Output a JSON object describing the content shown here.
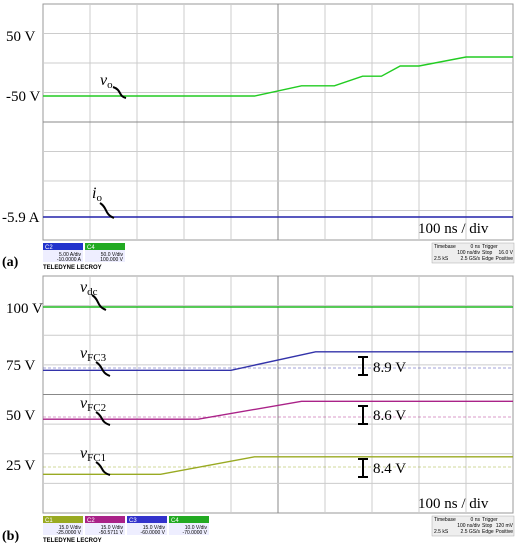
{
  "chart_data": [
    {
      "panel_label": "(a)",
      "type": "line",
      "timebase": "100 ns / div",
      "ytick_labels": [
        "50 V",
        "-50 V",
        "-5.9 A"
      ],
      "series": [
        {
          "name": "v",
          "sub": "o",
          "color": "#22cc22",
          "x": [
            0,
            45,
            55,
            62,
            68,
            72,
            76,
            80,
            90,
            100
          ],
          "y": [
            -50,
            -50,
            -33,
            -33,
            -17,
            -17,
            0,
            0,
            15,
            15
          ]
        },
        {
          "name": "i",
          "sub": "o",
          "color": "#2222aa",
          "x": [
            0,
            100
          ],
          "y": [
            -5.9,
            -5.9
          ]
        }
      ],
      "scope_info": {
        "channels": [
          {
            "id": "C2",
            "scale": "5.00 A/div",
            "offset": "-10.0000 A",
            "color": "#2233cc"
          },
          {
            "id": "C4",
            "scale": "50.0 V/div",
            "offset": "100.000 V",
            "color": "#22aa22"
          }
        ],
        "timebase_label": "Timebase",
        "timebase_value": "0 ns",
        "time_per_div": "100 ns/div",
        "samples": "2.5 kS",
        "rate": "2.5 GS/s",
        "trigger_label": "Trigger",
        "trigger_mode": "Stop",
        "trigger_level": "16.0 V",
        "trigger_type": "Edge",
        "trigger_slope": "Positive",
        "brand": "TELEDYNE LECROY"
      }
    },
    {
      "panel_label": "(b)",
      "type": "line",
      "timebase": "100 ns / div",
      "ytick_labels": [
        "100 V",
        "75 V",
        "50 V",
        "25 V"
      ],
      "series": [
        {
          "name": "v",
          "sub": "dc",
          "color": "#22bb22",
          "x": [
            0,
            100
          ],
          "y": [
            100,
            100
          ]
        },
        {
          "name": "v",
          "sub": "FC3",
          "color": "#3333aa",
          "x": [
            0,
            40,
            58,
            100
          ],
          "y": [
            71,
            71,
            79.9,
            79.9
          ]
        },
        {
          "name": "v",
          "sub": "FC2",
          "color": "#aa2288",
          "x": [
            0,
            33,
            55,
            100
          ],
          "y": [
            47.5,
            47.5,
            56.1,
            56.1
          ]
        },
        {
          "name": "v",
          "sub": "FC1",
          "color": "#99aa22",
          "x": [
            0,
            25,
            45,
            100
          ],
          "y": [
            21,
            21,
            29.4,
            29.4
          ]
        }
      ],
      "annotations": [
        "8.9 V",
        "8.6 V",
        "8.4 V"
      ],
      "scope_info": {
        "channels": [
          {
            "id": "C1",
            "scale": "15.0 V/div",
            "offset": "-25.0000 V",
            "color": "#99aa22"
          },
          {
            "id": "C2",
            "scale": "15.0 V/div",
            "offset": "-50.5711 V",
            "color": "#aa2288"
          },
          {
            "id": "C3",
            "scale": "15.0 V/div",
            "offset": "-60.0000 V",
            "color": "#3333cc"
          },
          {
            "id": "C4",
            "scale": "10.0 V/div",
            "offset": "-70.0000 V",
            "color": "#22aa22"
          }
        ],
        "timebase_label": "Timebase",
        "timebase_value": "0 ns",
        "time_per_div": "100 ns/div",
        "samples": "2.5 kS",
        "rate": "2.5 GS/s",
        "trigger_label": "Trigger",
        "trigger_mode": "Stop",
        "trigger_level": "120 mV",
        "trigger_type": "Edge",
        "trigger_slope": "Positive",
        "brand": "TELEDYNE LECROY"
      }
    }
  ]
}
